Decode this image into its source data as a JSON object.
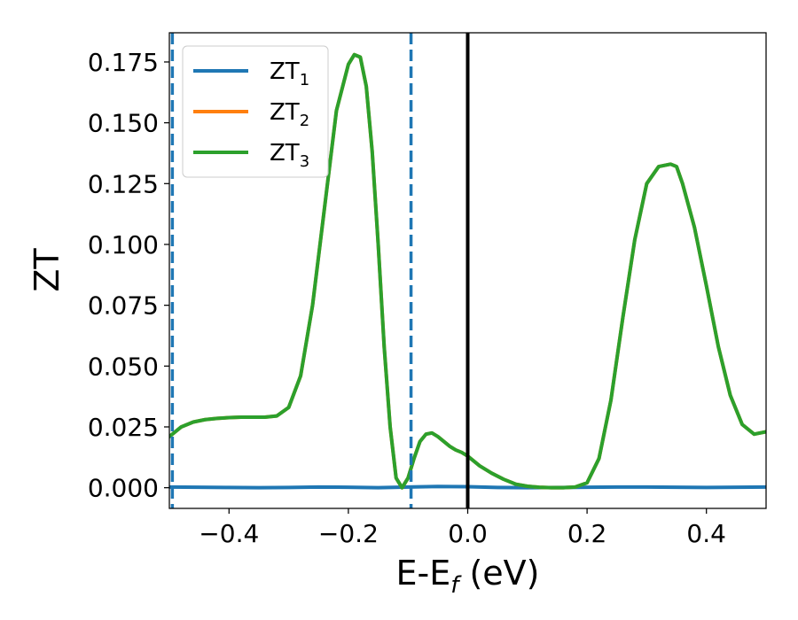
{
  "chart_data": {
    "type": "line",
    "xlabel": "E-E",
    "xlabel_sub": "f",
    "xlabel_unit": " (eV)",
    "ylabel": "ZT",
    "xlim": [
      -0.5,
      0.5
    ],
    "ylim": [
      -0.0085,
      0.187
    ],
    "xticks": [
      -0.4,
      -0.2,
      0.0,
      0.2,
      0.4
    ],
    "xtick_labels": [
      "−0.4",
      "−0.2",
      "0.0",
      "0.2",
      "0.4"
    ],
    "yticks": [
      0.0,
      0.025,
      0.05,
      0.075,
      0.1,
      0.125,
      0.15,
      0.175
    ],
    "ytick_labels": [
      "0.000",
      "0.025",
      "0.050",
      "0.075",
      "0.100",
      "0.125",
      "0.150",
      "0.175"
    ],
    "grid": false,
    "legend_position": "top-left",
    "vlines": [
      {
        "x": -0.495,
        "style": "dashed",
        "color": "#1f77b4"
      },
      {
        "x": -0.095,
        "style": "dashed",
        "color": "#1f77b4"
      },
      {
        "x": 0.0,
        "style": "solid",
        "color": "#000000"
      }
    ],
    "series": [
      {
        "name": "ZT",
        "sub": "1",
        "color": "#1f77b4",
        "x": [
          -0.5,
          -0.45,
          -0.4,
          -0.35,
          -0.3,
          -0.25,
          -0.2,
          -0.15,
          -0.1,
          -0.05,
          0.0,
          0.05,
          0.1,
          0.15,
          0.2,
          0.25,
          0.3,
          0.35,
          0.4,
          0.45,
          0.5
        ],
        "y": [
          0.0003,
          0.0002,
          0.0001,
          0.0,
          0.0001,
          0.0003,
          0.0002,
          0.0,
          0.0003,
          0.0005,
          0.0004,
          0.0001,
          0.0,
          0.0001,
          0.0002,
          0.0003,
          0.0003,
          0.0002,
          0.0001,
          0.0002,
          0.0003
        ]
      },
      {
        "name": "ZT",
        "sub": "2",
        "color": "#ff7f0e",
        "x": [
          -0.5,
          -0.48,
          -0.46,
          -0.44,
          -0.42,
          -0.4,
          -0.38,
          -0.36,
          -0.34,
          -0.32,
          -0.3,
          -0.28,
          -0.26,
          -0.24,
          -0.22,
          -0.2,
          -0.19,
          -0.18,
          -0.17,
          -0.16,
          -0.15,
          -0.14,
          -0.13,
          -0.12,
          -0.11,
          -0.1,
          -0.09,
          -0.08,
          -0.07,
          -0.06,
          -0.05,
          -0.04,
          -0.03,
          -0.02,
          -0.01,
          0.0,
          0.02,
          0.04,
          0.06,
          0.08,
          0.1,
          0.12,
          0.14,
          0.16,
          0.18,
          0.2,
          0.22,
          0.24,
          0.26,
          0.28,
          0.3,
          0.32,
          0.34,
          0.35,
          0.36,
          0.38,
          0.4,
          0.42,
          0.44,
          0.46,
          0.48,
          0.5
        ],
        "y": [
          0.021,
          0.025,
          0.027,
          0.028,
          0.0285,
          0.0288,
          0.029,
          0.029,
          0.029,
          0.0295,
          0.033,
          0.046,
          0.075,
          0.115,
          0.155,
          0.174,
          0.178,
          0.177,
          0.165,
          0.138,
          0.1,
          0.058,
          0.025,
          0.004,
          0.0,
          0.004,
          0.012,
          0.019,
          0.022,
          0.0225,
          0.021,
          0.019,
          0.017,
          0.0155,
          0.0145,
          0.013,
          0.009,
          0.006,
          0.0035,
          0.0015,
          0.0006,
          0.0002,
          0.0,
          0.0,
          0.0003,
          0.002,
          0.012,
          0.036,
          0.07,
          0.102,
          0.125,
          0.132,
          0.133,
          0.132,
          0.125,
          0.107,
          0.083,
          0.058,
          0.038,
          0.026,
          0.022,
          0.023
        ]
      },
      {
        "name": "ZT",
        "sub": "3",
        "color": "#2ca02c",
        "x": [
          -0.5,
          -0.48,
          -0.46,
          -0.44,
          -0.42,
          -0.4,
          -0.38,
          -0.36,
          -0.34,
          -0.32,
          -0.3,
          -0.28,
          -0.26,
          -0.24,
          -0.22,
          -0.2,
          -0.19,
          -0.18,
          -0.17,
          -0.16,
          -0.15,
          -0.14,
          -0.13,
          -0.12,
          -0.11,
          -0.1,
          -0.09,
          -0.08,
          -0.07,
          -0.06,
          -0.05,
          -0.04,
          -0.03,
          -0.02,
          -0.01,
          0.0,
          0.02,
          0.04,
          0.06,
          0.08,
          0.1,
          0.12,
          0.14,
          0.16,
          0.18,
          0.2,
          0.22,
          0.24,
          0.26,
          0.28,
          0.3,
          0.32,
          0.34,
          0.35,
          0.36,
          0.38,
          0.4,
          0.42,
          0.44,
          0.46,
          0.48,
          0.5
        ],
        "y": [
          0.021,
          0.025,
          0.027,
          0.028,
          0.0285,
          0.0288,
          0.029,
          0.029,
          0.029,
          0.0295,
          0.033,
          0.046,
          0.075,
          0.115,
          0.155,
          0.174,
          0.178,
          0.177,
          0.165,
          0.138,
          0.1,
          0.058,
          0.025,
          0.004,
          0.0,
          0.004,
          0.012,
          0.019,
          0.022,
          0.0225,
          0.021,
          0.019,
          0.017,
          0.0155,
          0.0145,
          0.013,
          0.009,
          0.006,
          0.0035,
          0.0015,
          0.0006,
          0.0002,
          0.0,
          0.0,
          0.0003,
          0.002,
          0.012,
          0.036,
          0.07,
          0.102,
          0.125,
          0.132,
          0.133,
          0.132,
          0.125,
          0.107,
          0.083,
          0.058,
          0.038,
          0.026,
          0.022,
          0.023
        ]
      }
    ]
  }
}
